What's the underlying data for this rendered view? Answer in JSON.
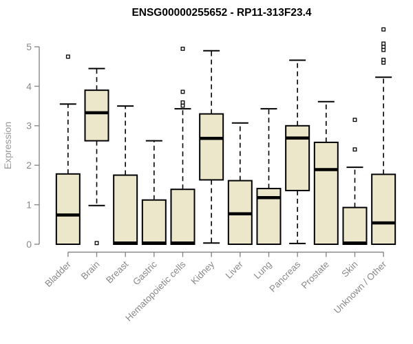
{
  "chart_data": {
    "type": "boxplot",
    "title": "ENSG00000255652 - RP11-313F23.4",
    "xlabel": "",
    "ylabel": "Expression",
    "ylim": [
      0,
      5
    ],
    "yticks": [
      0,
      1,
      2,
      3,
      4,
      5
    ],
    "grid": false,
    "legend": false,
    "categories": [
      "Bladder",
      "Brain",
      "Breast",
      "Gastric",
      "Hematopoietic cells",
      "Kidney",
      "Liver",
      "Lung",
      "Pancreas",
      "Prostate",
      "Skin",
      "Unknown / Other"
    ],
    "boxes": [
      {
        "category": "Bladder",
        "whisker_low": 0,
        "q1": 0,
        "median": 0.74,
        "q3": 1.78,
        "whisker_high": 3.55,
        "outliers": [
          4.75
        ]
      },
      {
        "category": "Brain",
        "whisker_low": 0.98,
        "q1": 2.62,
        "median": 3.33,
        "q3": 3.9,
        "whisker_high": 4.45,
        "outliers": [
          0.03
        ]
      },
      {
        "category": "Breast",
        "whisker_low": 0,
        "q1": 0,
        "median": 0.03,
        "q3": 1.75,
        "whisker_high": 3.5,
        "outliers": []
      },
      {
        "category": "Gastric",
        "whisker_low": 0,
        "q1": 0,
        "median": 0.03,
        "q3": 1.12,
        "whisker_high": 2.62,
        "outliers": []
      },
      {
        "category": "Hematopoietic cells",
        "whisker_low": 0,
        "q1": 0,
        "median": 0.03,
        "q3": 1.39,
        "whisker_high": 3.43,
        "outliers": [
          3.51,
          3.59,
          3.86,
          4.95
        ]
      },
      {
        "category": "Kidney",
        "whisker_low": 0.03,
        "q1": 1.63,
        "median": 2.68,
        "q3": 3.3,
        "whisker_high": 4.9,
        "outliers": []
      },
      {
        "category": "Liver",
        "whisker_low": 0,
        "q1": 0,
        "median": 0.77,
        "q3": 1.61,
        "whisker_high": 3.07,
        "outliers": []
      },
      {
        "category": "Lung",
        "whisker_low": 0,
        "q1": 0,
        "median": 1.18,
        "q3": 1.41,
        "whisker_high": 3.43,
        "outliers": []
      },
      {
        "category": "Pancreas",
        "whisker_low": 0.02,
        "q1": 1.36,
        "median": 2.69,
        "q3": 3.0,
        "whisker_high": 4.66,
        "outliers": []
      },
      {
        "category": "Prostate",
        "whisker_low": 0,
        "q1": 0,
        "median": 1.89,
        "q3": 2.58,
        "whisker_high": 3.61,
        "outliers": []
      },
      {
        "category": "Skin",
        "whisker_low": 0,
        "q1": 0,
        "median": 0.03,
        "q3": 0.93,
        "whisker_high": 1.95,
        "outliers": [
          2.4,
          3.15
        ]
      },
      {
        "category": "Unknown / Other",
        "whisker_low": 0,
        "q1": 0,
        "median": 0.54,
        "q3": 1.77,
        "whisker_high": 4.23,
        "outliers": [
          4.6,
          4.67,
          4.92,
          5.0,
          5.08,
          5.44
        ]
      }
    ],
    "colors": {
      "box_fill": "#ece6cb",
      "box_border": "#000000",
      "median": "#000000",
      "whisker": "#000000",
      "outlier_stroke": "#000000",
      "outlier_fill": "#ffffff",
      "axis_line": "#888888",
      "tick_label": "#8a8a8a",
      "axis_title": "#999999",
      "title": "#000000",
      "background": "#ffffff"
    }
  }
}
